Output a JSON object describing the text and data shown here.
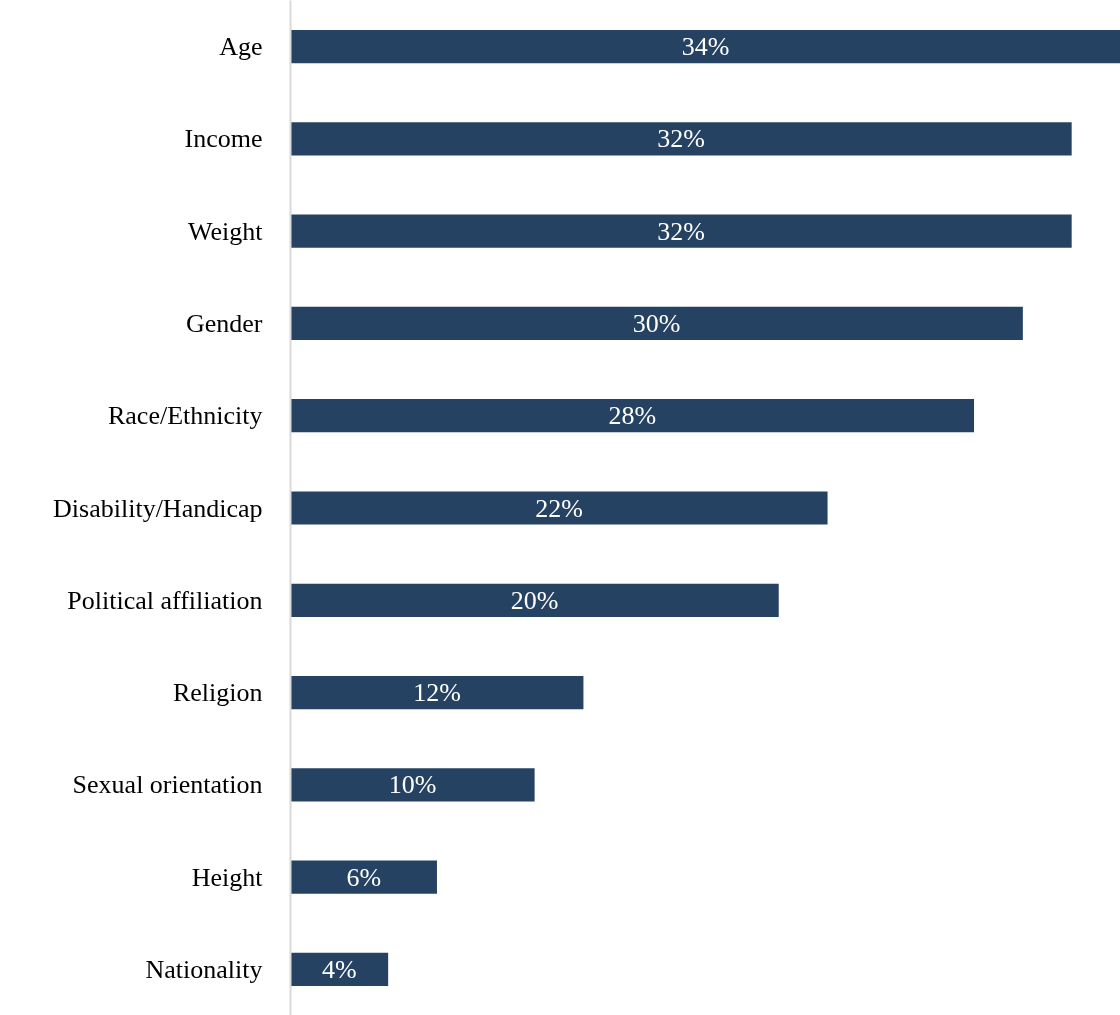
{
  "chart_data": {
    "type": "bar",
    "orientation": "horizontal",
    "categories": [
      "Age",
      "Income",
      "Weight",
      "Gender",
      "Race/Ethnicity",
      "Disability/Handicap",
      "Political affiliation",
      "Religion",
      "Sexual orientation",
      "Height",
      "Nationality"
    ],
    "values": [
      34,
      32,
      32,
      30,
      28,
      22,
      20,
      12,
      10,
      6,
      4
    ],
    "value_labels": [
      "34%",
      "32%",
      "32%",
      "30%",
      "28%",
      "22%",
      "20%",
      "12%",
      "10%",
      "6%",
      "4%"
    ],
    "color": "#264263",
    "grid": false
  }
}
